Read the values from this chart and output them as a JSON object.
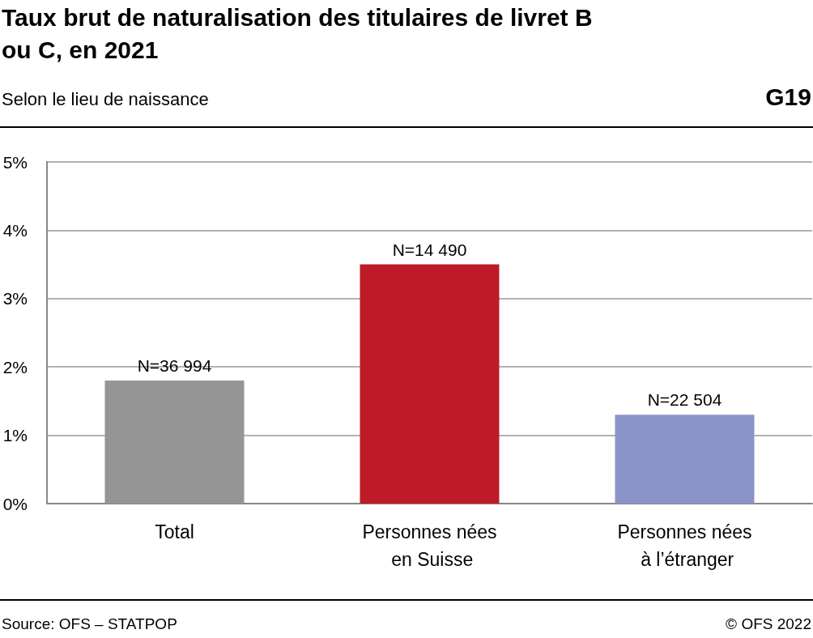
{
  "chart_data": {
    "type": "bar",
    "title": "Taux brut de naturalisation des titulaires de livret B ou C, en 2021",
    "subtitle": "Selon le lieu de naissance",
    "annotations": [
      "G19",
      "Source: OFS – STATPOP",
      "© OFS 2022",
      {
        "text": "N=36 994",
        "x": "Total",
        "y": 1.8
      },
      {
        "text": "N=14 490",
        "x": "Personnes nées en Suisse",
        "y": 3.5
      },
      {
        "text": "N=22 504",
        "x": "Personnes nées à l’étranger",
        "y": 1.3
      }
    ],
    "categories": [
      "Total",
      "Personnes nées en Suisse",
      "Personnes nées à l’étranger"
    ],
    "values": [
      1.8,
      3.5,
      1.3
    ],
    "colors": [
      "#959595",
      "#be1a28",
      "#8a94c9"
    ],
    "ylim": [
      0,
      5
    ],
    "yticks": [
      {
        "value": 0,
        "label": "0%"
      },
      {
        "value": 1,
        "label": "1%"
      },
      {
        "value": 2,
        "label": "2%"
      },
      {
        "value": 3,
        "label": "3%"
      },
      {
        "value": 4,
        "label": "4%"
      },
      {
        "value": 5,
        "label": "5%"
      }
    ],
    "grid": "y"
  }
}
